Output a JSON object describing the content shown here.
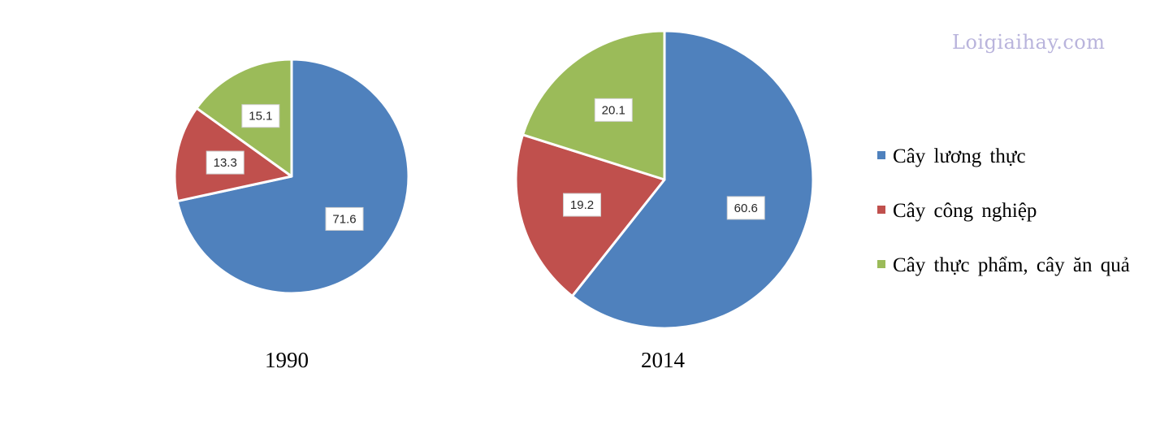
{
  "watermark": "Loigiaihay.com",
  "colors": {
    "Cây lương thực": "#4f81bd",
    "Cây công nghiệp": "#c0504d",
    "Cây thực phẩm, cây ăn quả": "#9bbb59"
  },
  "chart_data": {
    "type": "pie",
    "legend_position": "right",
    "categories": [
      "Cây lương thực",
      "Cây công nghiệp",
      "Cây thực phẩm, cây ăn quả"
    ],
    "pies": [
      {
        "label": "1990",
        "values": [
          71.6,
          13.3,
          15.1
        ]
      },
      {
        "label": "2014",
        "values": [
          60.6,
          19.2,
          20.1
        ]
      }
    ]
  }
}
